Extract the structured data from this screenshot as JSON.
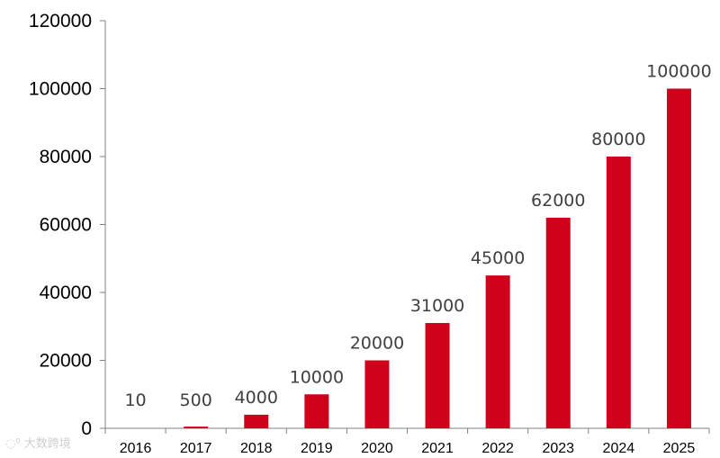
{
  "chart_data": {
    "type": "bar",
    "categories": [
      "2016",
      "2017",
      "2018",
      "2019",
      "2020",
      "2021",
      "2022",
      "2023",
      "2024",
      "2025"
    ],
    "values": [
      10,
      500,
      4000,
      10000,
      20000,
      31000,
      45000,
      62000,
      80000,
      100000
    ],
    "data_labels": [
      "10",
      "500",
      "4000",
      "10000",
      "20000",
      "31000",
      "45000",
      "62000",
      "80000",
      "100000"
    ],
    "title": "",
    "xlabel": "",
    "ylabel": "",
    "ylim": [
      0,
      120000
    ],
    "yticks": [
      0,
      20000,
      40000,
      60000,
      80000,
      100000,
      120000
    ],
    "ytick_labels": [
      "0",
      "20000",
      "40000",
      "60000",
      "80000",
      "100000",
      "120000"
    ],
    "grid": false,
    "bar_color": "#d0021b"
  },
  "watermark": "大数跨境"
}
